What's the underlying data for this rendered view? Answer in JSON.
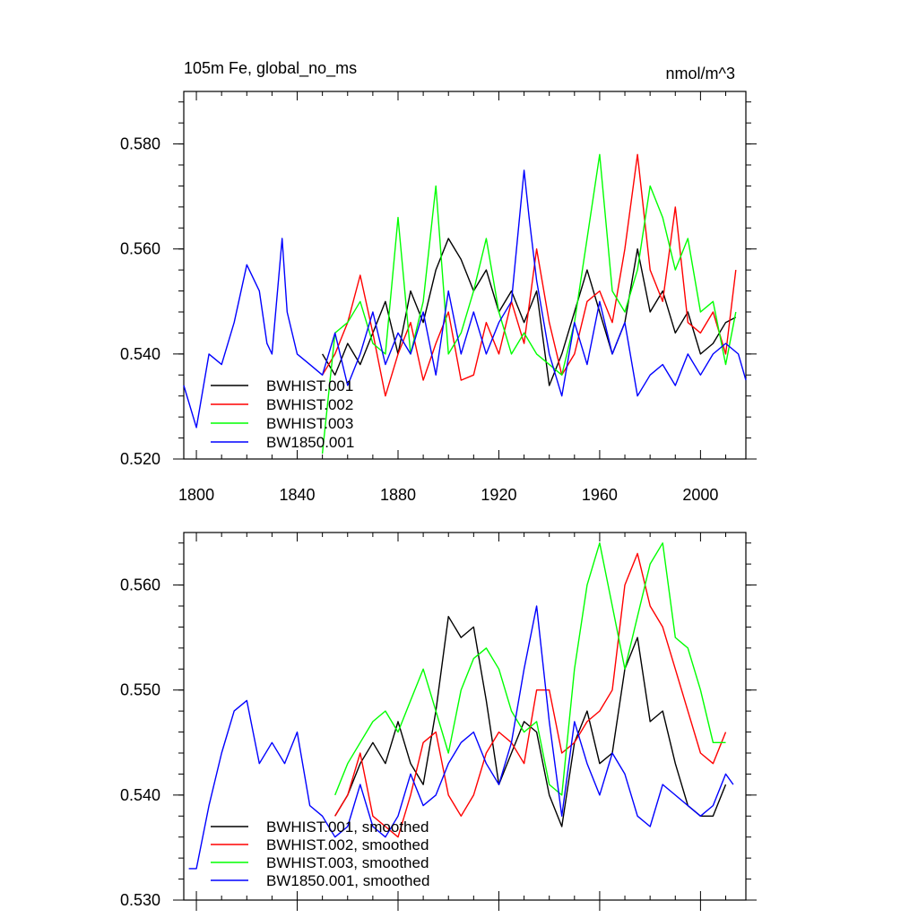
{
  "chart_data": [
    {
      "type": "line",
      "title": "105m Fe, global_no_ms",
      "units": "nmol/m^3",
      "xlim": [
        1795,
        2018
      ],
      "ylim": [
        0.52,
        0.59
      ],
      "xticks": [
        1800,
        1840,
        1880,
        1920,
        1960,
        2000
      ],
      "xtick_labels": [
        "1800",
        "1840",
        "1880",
        "1920",
        "1960",
        "2000"
      ],
      "yticks": [
        0.52,
        0.54,
        0.56,
        0.58
      ],
      "ytick_labels": [
        "0.520",
        "0.540",
        "0.560",
        "0.580"
      ],
      "legend_position": "lower-left",
      "series": [
        {
          "name": "BWHIST.001",
          "color": "#000000",
          "x": [
            1850,
            1855,
            1860,
            1865,
            1870,
            1875,
            1880,
            1885,
            1890,
            1895,
            1900,
            1905,
            1910,
            1915,
            1920,
            1925,
            1930,
            1935,
            1940,
            1945,
            1950,
            1955,
            1960,
            1965,
            1970,
            1975,
            1980,
            1985,
            1990,
            1995,
            2000,
            2005,
            2010,
            2014
          ],
          "y": [
            0.54,
            0.536,
            0.542,
            0.538,
            0.544,
            0.55,
            0.54,
            0.552,
            0.546,
            0.556,
            0.562,
            0.558,
            0.552,
            0.556,
            0.548,
            0.552,
            0.546,
            0.552,
            0.534,
            0.54,
            0.548,
            0.556,
            0.548,
            0.54,
            0.546,
            0.56,
            0.548,
            0.552,
            0.544,
            0.548,
            0.54,
            0.542,
            0.546,
            0.547
          ]
        },
        {
          "name": "BWHIST.002",
          "color": "#ff0000",
          "x": [
            1850,
            1855,
            1860,
            1865,
            1870,
            1875,
            1880,
            1885,
            1890,
            1895,
            1900,
            1905,
            1910,
            1915,
            1920,
            1925,
            1930,
            1935,
            1940,
            1945,
            1950,
            1955,
            1960,
            1965,
            1970,
            1975,
            1980,
            1985,
            1990,
            1995,
            2000,
            2005,
            2010,
            2014
          ],
          "y": [
            0.536,
            0.54,
            0.546,
            0.555,
            0.544,
            0.532,
            0.54,
            0.546,
            0.535,
            0.542,
            0.548,
            0.535,
            0.536,
            0.546,
            0.54,
            0.55,
            0.542,
            0.56,
            0.546,
            0.536,
            0.54,
            0.55,
            0.552,
            0.546,
            0.56,
            0.578,
            0.556,
            0.55,
            0.568,
            0.546,
            0.544,
            0.548,
            0.54,
            0.556
          ]
        },
        {
          "name": "BWHIST.003",
          "color": "#00ff00",
          "x": [
            1850,
            1855,
            1860,
            1865,
            1870,
            1875,
            1880,
            1885,
            1890,
            1895,
            1900,
            1905,
            1910,
            1915,
            1920,
            1925,
            1930,
            1935,
            1940,
            1945,
            1950,
            1955,
            1960,
            1965,
            1970,
            1975,
            1980,
            1985,
            1990,
            1995,
            2000,
            2005,
            2010,
            2014
          ],
          "y": [
            0.521,
            0.544,
            0.546,
            0.55,
            0.542,
            0.54,
            0.566,
            0.54,
            0.55,
            0.572,
            0.54,
            0.544,
            0.552,
            0.562,
            0.548,
            0.54,
            0.544,
            0.54,
            0.538,
            0.536,
            0.546,
            0.562,
            0.578,
            0.552,
            0.548,
            0.556,
            0.572,
            0.566,
            0.556,
            0.562,
            0.548,
            0.55,
            0.538,
            0.548
          ]
        },
        {
          "name": "BW1850.001",
          "color": "#0000ff",
          "x": [
            1795,
            1800,
            1805,
            1810,
            1815,
            1820,
            1825,
            1828,
            1830,
            1834,
            1836,
            1840,
            1845,
            1850,
            1855,
            1860,
            1865,
            1870,
            1875,
            1880,
            1885,
            1890,
            1895,
            1900,
            1905,
            1910,
            1915,
            1920,
            1925,
            1930,
            1932,
            1935,
            1940,
            1945,
            1950,
            1955,
            1960,
            1965,
            1970,
            1975,
            1980,
            1985,
            1990,
            1995,
            2000,
            2005,
            2010,
            2015,
            2018
          ],
          "y": [
            0.534,
            0.526,
            0.54,
            0.538,
            0.546,
            0.557,
            0.552,
            0.542,
            0.54,
            0.562,
            0.548,
            0.54,
            0.538,
            0.536,
            0.544,
            0.534,
            0.54,
            0.548,
            0.538,
            0.544,
            0.54,
            0.548,
            0.536,
            0.552,
            0.54,
            0.548,
            0.54,
            0.546,
            0.55,
            0.575,
            0.566,
            0.554,
            0.54,
            0.532,
            0.546,
            0.538,
            0.55,
            0.54,
            0.546,
            0.532,
            0.536,
            0.538,
            0.534,
            0.54,
            0.536,
            0.54,
            0.542,
            0.54,
            0.535
          ]
        }
      ]
    },
    {
      "type": "line",
      "xlim": [
        1795,
        2018
      ],
      "ylim": [
        0.53,
        0.565
      ],
      "xticks": [
        1800,
        1840,
        1880,
        1920,
        1960,
        2000
      ],
      "yticks": [
        0.53,
        0.54,
        0.55,
        0.56
      ],
      "ytick_labels": [
        "0.530",
        "0.540",
        "0.550",
        "0.560"
      ],
      "legend_position": "lower-left",
      "series": [
        {
          "name": "BWHIST.001, smoothed",
          "color": "#000000",
          "x": [
            1855,
            1860,
            1865,
            1870,
            1875,
            1880,
            1885,
            1890,
            1895,
            1900,
            1905,
            1910,
            1915,
            1920,
            1925,
            1930,
            1935,
            1940,
            1945,
            1950,
            1955,
            1960,
            1965,
            1970,
            1975,
            1980,
            1985,
            1990,
            1995,
            2000,
            2005,
            2010
          ],
          "y": [
            0.538,
            0.54,
            0.543,
            0.545,
            0.543,
            0.547,
            0.543,
            0.541,
            0.548,
            0.557,
            0.555,
            0.556,
            0.549,
            0.541,
            0.544,
            0.547,
            0.546,
            0.54,
            0.537,
            0.545,
            0.548,
            0.543,
            0.544,
            0.552,
            0.555,
            0.547,
            0.548,
            0.543,
            0.539,
            0.538,
            0.538,
            0.541
          ]
        },
        {
          "name": "BWHIST.002, smoothed",
          "color": "#ff0000",
          "x": [
            1855,
            1860,
            1865,
            1870,
            1875,
            1880,
            1885,
            1890,
            1895,
            1900,
            1905,
            1910,
            1915,
            1920,
            1925,
            1930,
            1935,
            1940,
            1945,
            1950,
            1955,
            1960,
            1965,
            1970,
            1975,
            1980,
            1985,
            1990,
            1995,
            2000,
            2005,
            2010
          ],
          "y": [
            0.538,
            0.54,
            0.544,
            0.538,
            0.537,
            0.536,
            0.54,
            0.545,
            0.546,
            0.54,
            0.538,
            0.54,
            0.544,
            0.546,
            0.545,
            0.543,
            0.55,
            0.55,
            0.544,
            0.545,
            0.547,
            0.548,
            0.55,
            0.56,
            0.563,
            0.558,
            0.556,
            0.552,
            0.548,
            0.544,
            0.543,
            0.546
          ]
        },
        {
          "name": "BWHIST.003, smoothed",
          "color": "#00ff00",
          "x": [
            1855,
            1860,
            1865,
            1870,
            1875,
            1880,
            1885,
            1890,
            1895,
            1900,
            1905,
            1910,
            1915,
            1920,
            1925,
            1930,
            1935,
            1940,
            1945,
            1950,
            1955,
            1960,
            1965,
            1970,
            1975,
            1980,
            1985,
            1990,
            1995,
            2000,
            2005,
            2010
          ],
          "y": [
            0.54,
            0.543,
            0.545,
            0.547,
            0.548,
            0.546,
            0.549,
            0.552,
            0.548,
            0.544,
            0.55,
            0.553,
            0.554,
            0.552,
            0.548,
            0.546,
            0.547,
            0.541,
            0.54,
            0.552,
            0.56,
            0.564,
            0.558,
            0.552,
            0.557,
            0.562,
            0.564,
            0.555,
            0.554,
            0.55,
            0.545,
            0.545
          ]
        },
        {
          "name": "BW1850.001, smoothed",
          "color": "#0000ff",
          "x": [
            1797,
            1800,
            1805,
            1810,
            1815,
            1820,
            1825,
            1830,
            1835,
            1840,
            1845,
            1850,
            1855,
            1860,
            1865,
            1870,
            1875,
            1880,
            1885,
            1890,
            1895,
            1900,
            1905,
            1910,
            1915,
            1920,
            1925,
            1930,
            1935,
            1940,
            1945,
            1950,
            1955,
            1960,
            1965,
            1970,
            1975,
            1980,
            1985,
            1990,
            1995,
            2000,
            2005,
            2010,
            2013
          ],
          "y": [
            0.533,
            0.533,
            0.539,
            0.544,
            0.548,
            0.549,
            0.543,
            0.545,
            0.543,
            0.546,
            0.539,
            0.538,
            0.536,
            0.537,
            0.541,
            0.537,
            0.536,
            0.538,
            0.542,
            0.539,
            0.54,
            0.543,
            0.545,
            0.546,
            0.543,
            0.541,
            0.545,
            0.552,
            0.558,
            0.547,
            0.538,
            0.547,
            0.543,
            0.54,
            0.544,
            0.542,
            0.538,
            0.537,
            0.541,
            0.54,
            0.539,
            0.538,
            0.539,
            0.542,
            0.541
          ]
        }
      ]
    }
  ]
}
